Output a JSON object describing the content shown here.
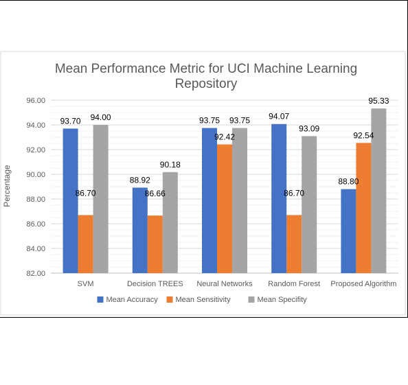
{
  "chart_data": {
    "type": "bar",
    "title": "Mean Performance Metric for UCI Machine Learning Repository",
    "title_lines": [
      "Mean Performance Metric for UCI Machine Learning",
      "Repository"
    ],
    "xlabel": "",
    "ylabel": "Percentage",
    "categories": [
      "SVM",
      "Decision TREES",
      "Neural Networks",
      "Random Forest",
      "Proposed Algorithm"
    ],
    "series": [
      {
        "name": "Mean Accuracy",
        "color": "#4472c4",
        "values": [
          93.7,
          88.92,
          93.75,
          94.07,
          88.8
        ]
      },
      {
        "name": "Mean Sensitivity",
        "color": "#ed7d31",
        "values": [
          86.7,
          86.66,
          92.42,
          86.7,
          92.54
        ]
      },
      {
        "name": "Mean Specifity",
        "color": "#a5a5a5",
        "values": [
          94.0,
          90.18,
          93.75,
          93.09,
          95.33
        ]
      }
    ],
    "ylim": [
      82.0,
      96.0
    ],
    "yticks": [
      "82.00",
      "84.00",
      "86.00",
      "88.00",
      "90.00",
      "92.00",
      "94.00",
      "96.00"
    ],
    "grid": true,
    "legend_position": "bottom"
  }
}
